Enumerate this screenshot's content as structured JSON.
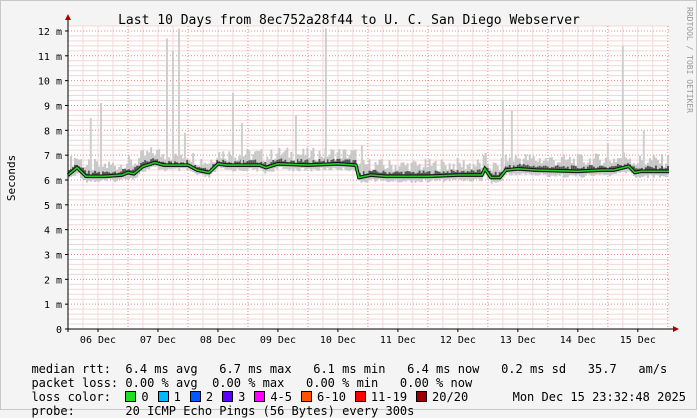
{
  "chart_data": {
    "type": "line",
    "title": "Last 10 Days from 8ec752a28f44 to U. C. San Diego Webserver",
    "ylabel": "Seconds",
    "ylim": [
      0,
      12.2
    ],
    "y_ticks": [
      {
        "value": 0,
        "label": "0"
      },
      {
        "value": 1,
        "label": "1 m"
      },
      {
        "value": 2,
        "label": "2 m"
      },
      {
        "value": 3,
        "label": "3 m"
      },
      {
        "value": 4,
        "label": "4 m"
      },
      {
        "value": 5,
        "label": "5 m"
      },
      {
        "value": 6,
        "label": "6 m"
      },
      {
        "value": 7,
        "label": "7 m"
      },
      {
        "value": 8,
        "label": "8 m"
      },
      {
        "value": 9,
        "label": "9 m"
      },
      {
        "value": 10,
        "label": "10 m"
      },
      {
        "value": 11,
        "label": "11 m"
      },
      {
        "value": 12,
        "label": "12 m"
      }
    ],
    "x_ticks": [
      "06 Dec",
      "07 Dec",
      "08 Dec",
      "09 Dec",
      "10 Dec",
      "11 Dec",
      "12 Dec",
      "13 Dec",
      "14 Dec",
      "15 Dec"
    ],
    "x_tick_positions_days": [
      0.5,
      1.5,
      2.5,
      3.5,
      4.5,
      5.5,
      6.5,
      7.5,
      8.5,
      9.5
    ],
    "x_range_days": [
      0,
      10.02
    ],
    "grid": true,
    "series": [
      {
        "name": "median rtt",
        "color": "#22cc22",
        "x": [
          0.0,
          0.15,
          0.3,
          0.6,
          0.9,
          1.0,
          1.1,
          1.25,
          1.45,
          1.6,
          2.0,
          2.15,
          2.35,
          2.5,
          2.65,
          3.2,
          3.3,
          3.5,
          4.0,
          4.5,
          4.8,
          4.85,
          5.05,
          5.3,
          6.0,
          6.5,
          6.9,
          6.95,
          7.05,
          7.2,
          7.3,
          7.5,
          7.8,
          8.5,
          8.9,
          9.1,
          9.35,
          9.45,
          9.55,
          10.02
        ],
        "values": [
          6.2,
          6.5,
          6.15,
          6.15,
          6.2,
          6.3,
          6.25,
          6.55,
          6.7,
          6.6,
          6.6,
          6.4,
          6.3,
          6.65,
          6.6,
          6.6,
          6.5,
          6.65,
          6.6,
          6.65,
          6.6,
          6.1,
          6.2,
          6.15,
          6.15,
          6.2,
          6.2,
          6.45,
          6.1,
          6.1,
          6.4,
          6.45,
          6.4,
          6.35,
          6.4,
          6.4,
          6.55,
          6.3,
          6.35,
          6.35
        ]
      }
    ],
    "spikes": [
      {
        "x": 0.55,
        "value": 9.1
      },
      {
        "x": 0.38,
        "value": 8.5
      },
      {
        "x": 1.65,
        "value": 11.7
      },
      {
        "x": 1.75,
        "value": 11.2
      },
      {
        "x": 1.85,
        "value": 12.1
      },
      {
        "x": 1.95,
        "value": 7.9
      },
      {
        "x": 2.75,
        "value": 9.5
      },
      {
        "x": 2.9,
        "value": 8.3
      },
      {
        "x": 3.8,
        "value": 8.6
      },
      {
        "x": 4.3,
        "value": 12.1
      },
      {
        "x": 4.9,
        "value": 7.4
      },
      {
        "x": 7.25,
        "value": 9.2
      },
      {
        "x": 7.4,
        "value": 8.8
      },
      {
        "x": 9.0,
        "value": 7.5
      },
      {
        "x": 9.25,
        "value": 11.4
      },
      {
        "x": 9.6,
        "value": 8.0
      }
    ]
  },
  "side_label": "RRDTOOL / TOBI OETIKER",
  "stats": {
    "median": {
      "label": "median rtt:",
      "values": "6.4 ms avg   6.7 ms max   6.1 ms min   6.4 ms now   0.2 ms sd   35.7   am/s"
    },
    "packet_loss": {
      "label": "packet loss:",
      "values": "0.00 % avg  0.00 % max   0.00 % min   0.00 % now"
    }
  },
  "loss_color": {
    "label": "loss color:",
    "items": [
      {
        "label": "0",
        "color": "#22dd22"
      },
      {
        "label": "1",
        "color": "#00b8ff"
      },
      {
        "label": "2",
        "color": "#0059ff"
      },
      {
        "label": "3",
        "color": "#5e00ff"
      },
      {
        "label": "4-5",
        "color": "#ff00ff"
      },
      {
        "label": "6-10",
        "color": "#ff5500"
      },
      {
        "label": "11-19",
        "color": "#ff0000"
      },
      {
        "label": "20/20",
        "color": "#a10000"
      }
    ]
  },
  "probe": {
    "label": "probe:",
    "value": "20 ICMP Echo Pings (56 Bytes) every 300s",
    "timestamp": "Mon Dec 15 23:32:48 2025"
  }
}
